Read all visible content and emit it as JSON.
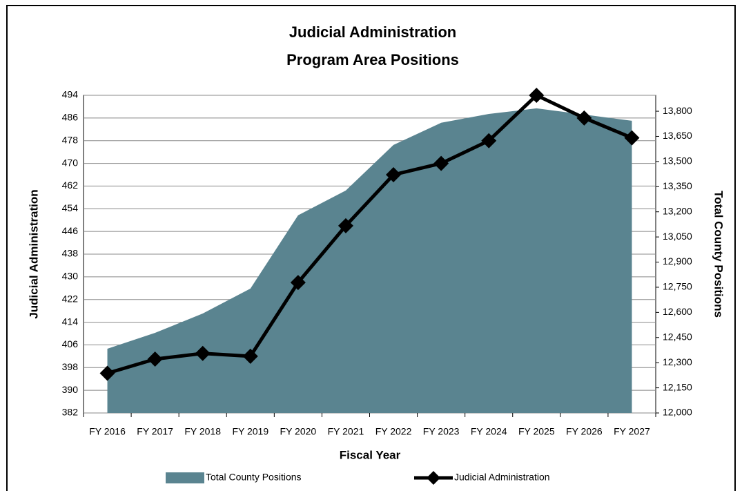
{
  "chart_data": {
    "type": "area_line",
    "title": [
      "Judicial Administration",
      "Program Area Positions"
    ],
    "x_label": "Fiscal Year",
    "y_label": "Judicial Administration",
    "y2_label": "Total County Positions",
    "categories": [
      "FY 2016",
      "FY 2017",
      "FY 2018",
      "FY 2019",
      "FY 2020",
      "FY 2021",
      "FY 2022",
      "FY 2023",
      "FY 2024",
      "FY 2025",
      "FY 2026",
      "FY 2027"
    ],
    "series": [
      {
        "name": "Total County Positions",
        "color": "#5a8490",
        "kind": "area",
        "axis": "y2",
        "values": [
          12383,
          12478,
          12593,
          12742,
          13179,
          13327,
          13599,
          13731,
          13784,
          13817,
          13780,
          13743
        ]
      },
      {
        "name": "Judicial Administration",
        "color": "#000000",
        "kind": "line",
        "axis": "y",
        "values": [
          396,
          401,
          403,
          402,
          428,
          448,
          466,
          470,
          478,
          494,
          486,
          479
        ]
      }
    ],
    "ylim": [
      382,
      494
    ],
    "yticks": [
      382,
      390,
      398,
      406,
      414,
      422,
      430,
      438,
      446,
      454,
      462,
      470,
      478,
      486,
      494
    ],
    "y2lim": [
      12000,
      13895
    ],
    "y2ticks": [
      {
        "value": 12000,
        "label": "12,000"
      },
      {
        "value": 12150,
        "label": "12,150"
      },
      {
        "value": 12300,
        "label": "12,300"
      },
      {
        "value": 12450,
        "label": "12,450"
      },
      {
        "value": 12600,
        "label": "12,600"
      },
      {
        "value": 12750,
        "label": "12,750"
      },
      {
        "value": 12900,
        "label": "12,900"
      },
      {
        "value": 13050,
        "label": "13,050"
      },
      {
        "value": 13200,
        "label": "13,200"
      },
      {
        "value": 13350,
        "label": "13,350"
      },
      {
        "value": 13500,
        "label": "13,500"
      },
      {
        "value": 13650,
        "label": "13,650"
      },
      {
        "value": 13800,
        "label": "13,800"
      }
    ],
    "grid": true
  }
}
